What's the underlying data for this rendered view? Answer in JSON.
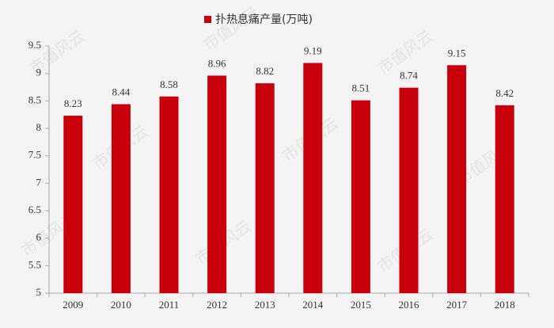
{
  "chart_data": {
    "type": "bar",
    "categories": [
      "2009",
      "2010",
      "2011",
      "2012",
      "2013",
      "2014",
      "2015",
      "2016",
      "2017",
      "2018"
    ],
    "series": [
      {
        "name": "扑热息痛产量(万吨)",
        "color": "#c8000b",
        "values": [
          8.23,
          8.44,
          8.58,
          8.96,
          8.82,
          9.19,
          8.51,
          8.74,
          9.15,
          8.42
        ]
      }
    ],
    "ylim": [
      5,
      9.5
    ],
    "yticks": [
      5,
      5.5,
      6,
      6.5,
      7,
      7.5,
      8,
      8.5,
      9,
      9.5
    ],
    "grid": false,
    "legend": "top",
    "watermark": "市值风云"
  }
}
